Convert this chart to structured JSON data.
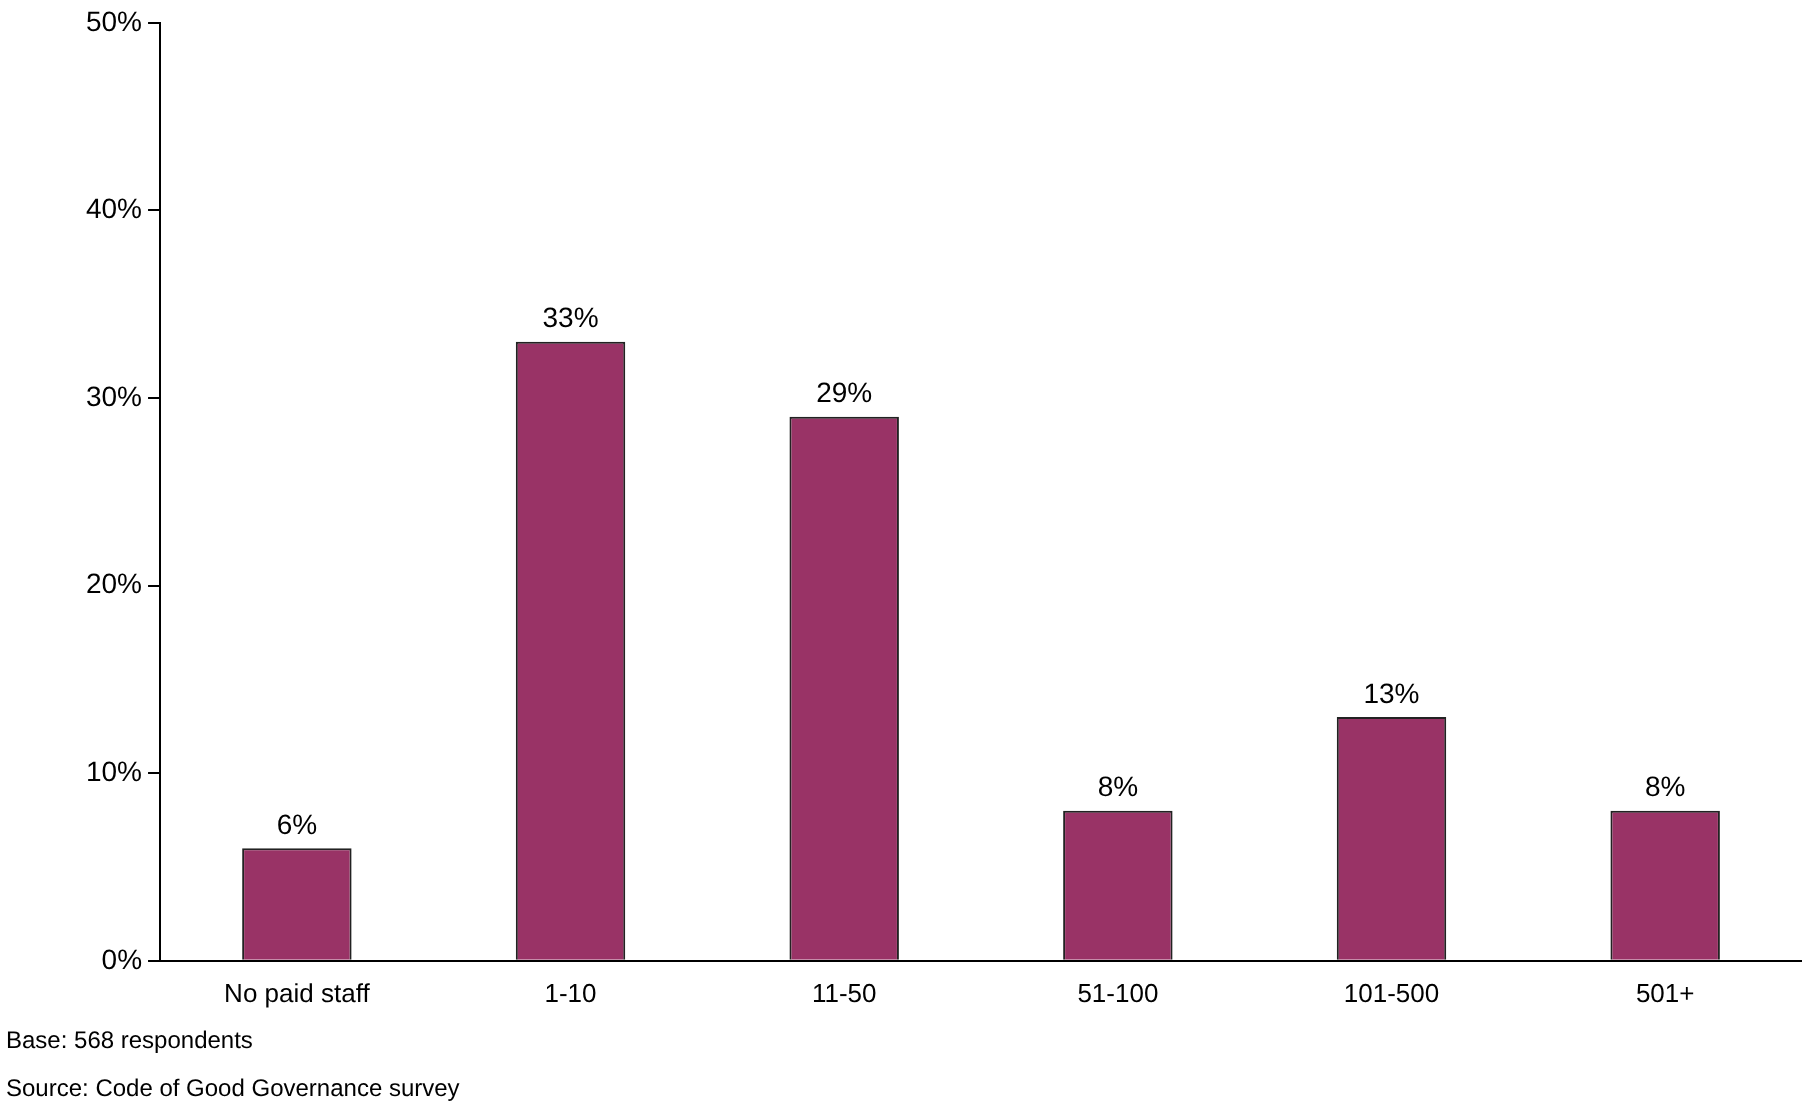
{
  "chart_data": {
    "type": "bar",
    "categories": [
      "No paid staff",
      "1-10",
      "11-50",
      "51-100",
      "101-500",
      "501+"
    ],
    "values": [
      6,
      33,
      29,
      8,
      13,
      8
    ],
    "value_labels": [
      "6%",
      "33%",
      "29%",
      "8%",
      "13%",
      "8%"
    ],
    "color": "#993366",
    "ylim": [
      0,
      50
    ],
    "yticks": [
      {
        "value": 0,
        "label": "0%"
      },
      {
        "value": 10,
        "label": "10%"
      },
      {
        "value": 20,
        "label": "20%"
      },
      {
        "value": 30,
        "label": "30%"
      },
      {
        "value": 40,
        "label": "40%"
      },
      {
        "value": 50,
        "label": "50%"
      }
    ],
    "grid": false,
    "legend": false,
    "annotations": [
      "Base: 568 respondents",
      "Source: Code of Good Governance survey"
    ]
  }
}
